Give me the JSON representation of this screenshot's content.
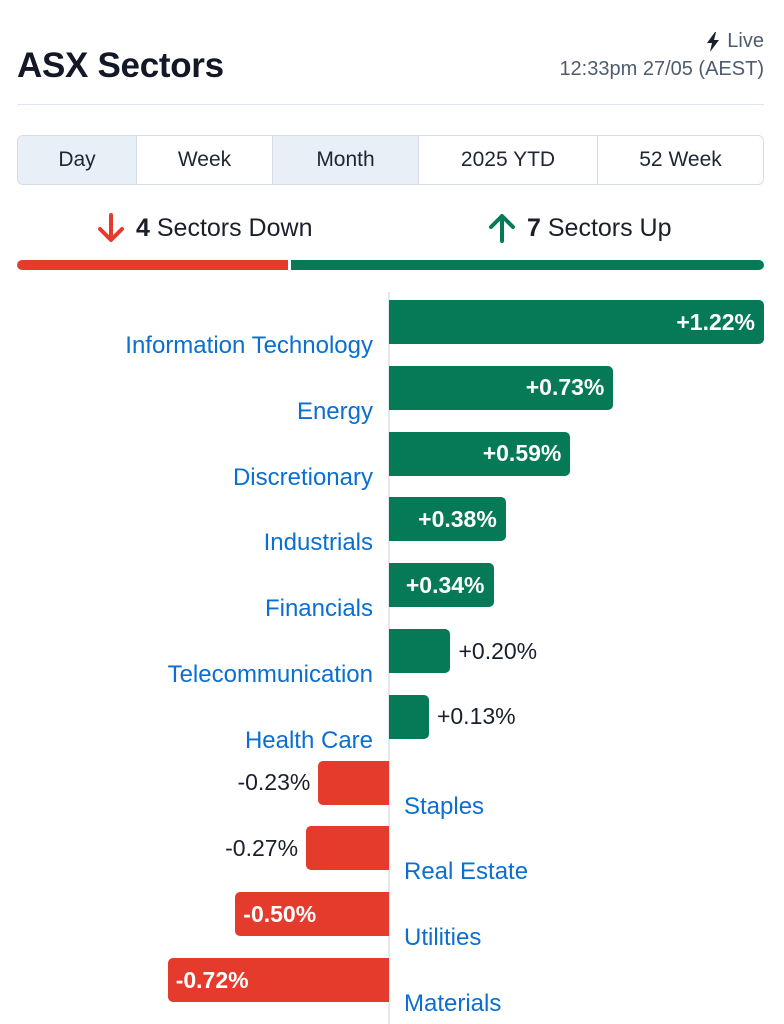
{
  "header": {
    "title": "ASX Sectors",
    "live_label": "Live",
    "timestamp": "12:33pm 27/05 (AEST)"
  },
  "tabs": [
    {
      "label": "Day",
      "shaded": true
    },
    {
      "label": "Week",
      "shaded": false
    },
    {
      "label": "Month",
      "shaded": true
    },
    {
      "label": "2025 YTD",
      "shaded": false
    },
    {
      "label": "52 Week",
      "shaded": false
    }
  ],
  "summary": {
    "down_count": "4",
    "down_label": "Sectors Down",
    "up_count": "7",
    "up_label": "Sectors Up"
  },
  "colors": {
    "up": "#067a57",
    "down": "#e53b2c",
    "link": "#0a6fd0"
  },
  "chart_data": {
    "type": "bar",
    "categories": [
      "Information Technology",
      "Energy",
      "Discretionary",
      "Industrials",
      "Financials",
      "Telecommunication",
      "Health Care",
      "Staples",
      "Real Estate",
      "Utilities",
      "Materials"
    ],
    "values": [
      1.22,
      0.73,
      0.59,
      0.38,
      0.34,
      0.2,
      0.13,
      -0.23,
      -0.27,
      -0.5,
      -0.72
    ],
    "value_labels": [
      "+1.22%",
      "+0.73%",
      "+0.59%",
      "+0.38%",
      "+0.34%",
      "+0.20%",
      "+0.13%",
      "-0.23%",
      "-0.27%",
      "-0.50%",
      "-0.72%"
    ],
    "title": "",
    "xlabel": "",
    "ylabel": ""
  }
}
